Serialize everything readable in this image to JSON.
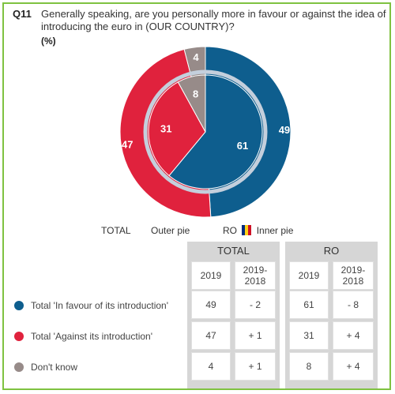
{
  "question": {
    "number": "Q11",
    "text": "Generally speaking, are you personally more in favour or against the idea of introducing the euro in (OUR COUNTRY)?",
    "unit": "(%)"
  },
  "legend": {
    "total": "TOTAL",
    "outer": "Outer pie",
    "ro": "RO",
    "inner": "Inner pie",
    "flag_colors": [
      "#002b7f",
      "#fcd116",
      "#ce1126"
    ]
  },
  "table": {
    "groups": [
      "TOTAL",
      "RO"
    ],
    "subheaders": [
      "2019",
      "2019-\n2018",
      "2019",
      "2019-\n2018"
    ],
    "rows": [
      {
        "label": "Total 'In favour of its introduction'",
        "color": "#0e5e8e",
        "values": [
          "49",
          "- 2",
          "61",
          "- 8"
        ]
      },
      {
        "label": "Total 'Against its introduction'",
        "color": "#e0223d",
        "values": [
          "47",
          "+ 1",
          "31",
          "+ 4"
        ]
      },
      {
        "label": "Don't know",
        "color": "#978b89",
        "values": [
          "4",
          "+ 1",
          "8",
          "+ 4"
        ]
      }
    ]
  },
  "chart_data": {
    "type": "pie",
    "title": "",
    "series": [
      {
        "name": "Outer pie",
        "labels": [
          "Total 'In favour of its introduction'",
          "Total 'Against its introduction'",
          "Don't know"
        ],
        "values": [
          49,
          47,
          4
        ]
      },
      {
        "name": "Inner pie",
        "labels": [
          "Total 'In favour of its introduction'",
          "Total 'Against its introduction'",
          "Don't know"
        ],
        "values": [
          61,
          31,
          8
        ]
      }
    ],
    "colors": [
      "#0e5e8e",
      "#e0223d",
      "#978b89"
    ],
    "ring_color": "#c4cfdc"
  }
}
